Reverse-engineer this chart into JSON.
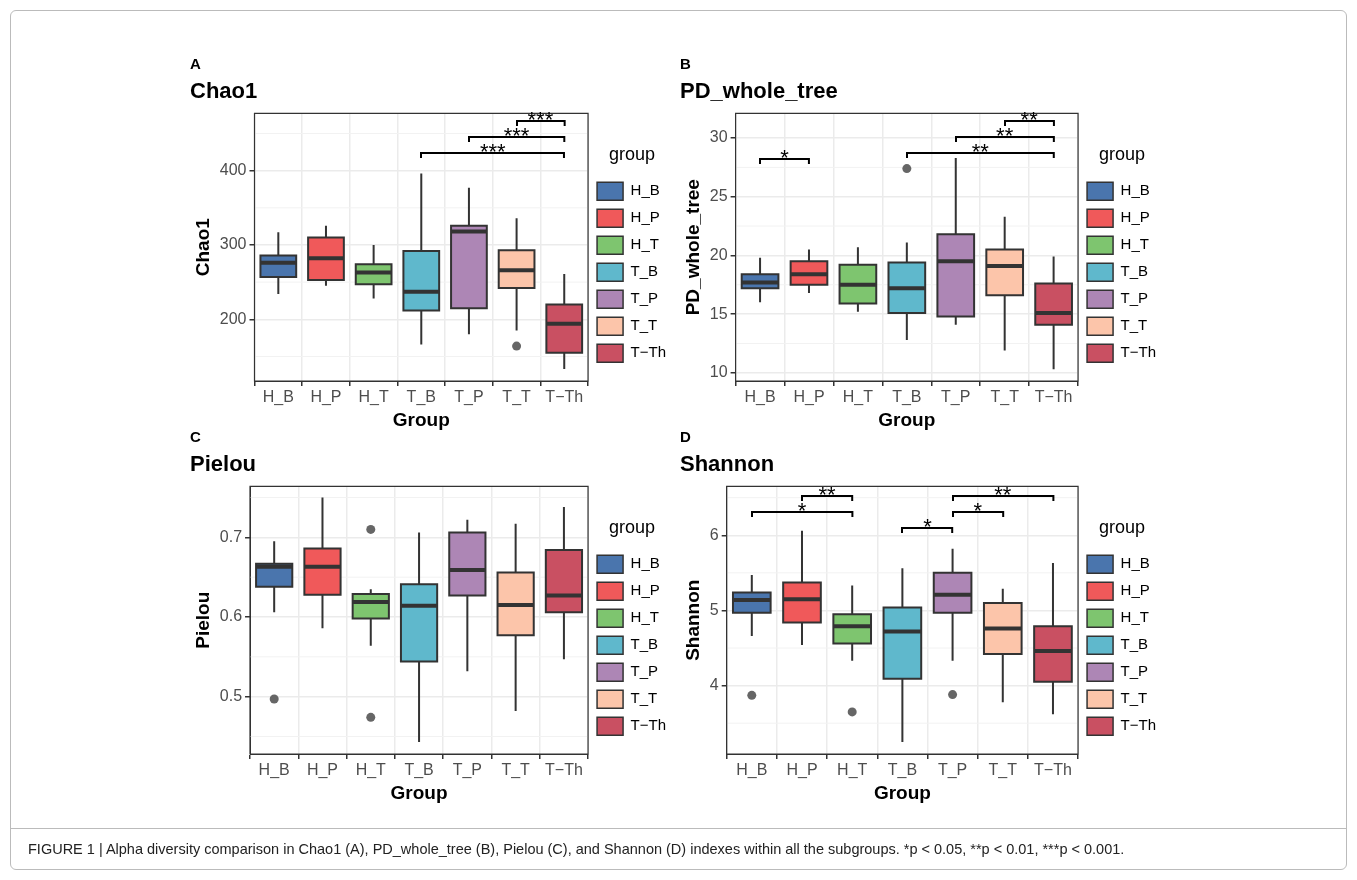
{
  "chart_data": [
    {
      "type": "box",
      "title": "Chao1",
      "xlabel": "Group",
      "ylabel": "Chao1",
      "legend_title": "group",
      "legend": "right",
      "grid": true,
      "categories": [
        "H_B",
        "H_P",
        "H_T",
        "T_B",
        "T_P",
        "T_T",
        "T−Th"
      ],
      "series": [
        {
          "name": "H_B",
          "color": "#4a75ad",
          "boxes": [
            {
              "low": 234,
              "q1": 257,
              "median": 276,
              "q3": 286,
              "high": 317
            },
            null,
            null,
            null,
            null,
            null,
            null
          ]
        },
        {
          "name": "H_P",
          "color": "#f0595a",
          "boxes": [
            null,
            {
              "low": 245,
              "q1": 253,
              "median": 282,
              "q3": 310,
              "high": 326
            },
            null,
            null,
            null,
            null,
            null
          ]
        },
        {
          "name": "H_T",
          "color": "#7ec56f",
          "boxes": [
            null,
            null,
            {
              "low": 228,
              "q1": 247,
              "median": 263,
              "q3": 274,
              "high": 300
            },
            null,
            null,
            null,
            null
          ]
        },
        {
          "name": "T_B",
          "color": "#5fb8cc",
          "boxes": [
            null,
            null,
            null,
            {
              "low": 166,
              "q1": 212,
              "median": 237,
              "q3": 292,
              "high": 396
            },
            null,
            null,
            null
          ]
        },
        {
          "name": "T_P",
          "color": "#ad86b5",
          "boxes": [
            null,
            null,
            null,
            null,
            {
              "low": 180,
              "q1": 215,
              "median": 318,
              "q3": 326,
              "high": 377
            },
            null,
            null
          ]
        },
        {
          "name": "T_T",
          "color": "#fcc5aa",
          "boxes": [
            null,
            null,
            null,
            null,
            null,
            {
              "low": 185,
              "q1": 242,
              "median": 266,
              "q3": 293,
              "high": 336,
              "outliers": [
                164
              ]
            },
            null
          ]
        },
        {
          "name": "T−Th",
          "color": "#c95062",
          "boxes": [
            null,
            null,
            null,
            null,
            null,
            null,
            {
              "low": 133,
              "q1": 155,
              "median": 194,
              "q3": 220,
              "high": 261
            }
          ]
        }
      ],
      "ylim": [
        117,
        477
      ],
      "yticks": [
        200,
        300,
        400
      ],
      "annotations": [
        "A",
        "***",
        "***",
        "***"
      ]
    },
    {
      "type": "box",
      "title": "PD_whole_tree",
      "xlabel": "Group",
      "ylabel": "PD_whole_tree",
      "legend_title": "group",
      "legend": "right",
      "grid": true,
      "categories": [
        "H_B",
        "H_P",
        "H_T",
        "T_B",
        "T_P",
        "T_T",
        "T−Th"
      ],
      "series": [
        {
          "name": "H_B",
          "color": "#4a75ad",
          "boxes": [
            {
              "low": 16.0,
              "q1": 17.2,
              "median": 17.7,
              "q3": 18.4,
              "high": 19.8
            },
            null,
            null,
            null,
            null,
            null,
            null
          ]
        },
        {
          "name": "H_P",
          "color": "#f0595a",
          "boxes": [
            null,
            {
              "low": 16.8,
              "q1": 17.5,
              "median": 18.4,
              "q3": 19.5,
              "high": 20.5
            },
            null,
            null,
            null,
            null,
            null
          ]
        },
        {
          "name": "H_T",
          "color": "#7ec56f",
          "boxes": [
            null,
            null,
            {
              "low": 15.2,
              "q1": 15.9,
              "median": 17.5,
              "q3": 19.2,
              "high": 20.7
            },
            null,
            null,
            null,
            null
          ]
        },
        {
          "name": "T_B",
          "color": "#5fb8cc",
          "boxes": [
            null,
            null,
            null,
            {
              "low": 12.8,
              "q1": 15.1,
              "median": 17.2,
              "q3": 19.4,
              "high": 21.1,
              "outliers": [
                27.4
              ]
            },
            null,
            null,
            null
          ]
        },
        {
          "name": "T_P",
          "color": "#ad86b5",
          "boxes": [
            null,
            null,
            null,
            null,
            {
              "low": 14.1,
              "q1": 14.8,
              "median": 19.5,
              "q3": 21.8,
              "high": 28.3
            },
            null,
            null
          ]
        },
        {
          "name": "T_T",
          "color": "#fcc5aa",
          "boxes": [
            null,
            null,
            null,
            null,
            null,
            {
              "low": 11.9,
              "q1": 16.6,
              "median": 19.1,
              "q3": 20.5,
              "high": 23.3
            },
            null
          ]
        },
        {
          "name": "T−Th",
          "color": "#c95062",
          "boxes": [
            null,
            null,
            null,
            null,
            null,
            null,
            {
              "low": 10.3,
              "q1": 14.1,
              "median": 15.1,
              "q3": 17.6,
              "high": 19.9
            }
          ]
        }
      ],
      "ylim": [
        9.3,
        32.1
      ],
      "yticks": [
        10,
        15,
        20,
        25,
        30
      ],
      "annotations": [
        "B",
        "*",
        "**",
        "**",
        "**"
      ]
    },
    {
      "type": "box",
      "title": "Pielou",
      "xlabel": "Group",
      "ylabel": "Pielou",
      "legend_title": "group",
      "legend": "right",
      "grid": true,
      "categories": [
        "H_B",
        "H_P",
        "H_T",
        "T_B",
        "T_P",
        "T_T",
        "T−Th"
      ],
      "series": [
        {
          "name": "H_B",
          "color": "#4a75ad",
          "boxes": [
            {
              "low": 0.606,
              "q1": 0.638,
              "median": 0.663,
              "q3": 0.667,
              "high": 0.695,
              "outliers": [
                0.497
              ]
            },
            null,
            null,
            null,
            null,
            null,
            null
          ]
        },
        {
          "name": "H_P",
          "color": "#f0595a",
          "boxes": [
            null,
            {
              "low": 0.586,
              "q1": 0.628,
              "median": 0.663,
              "q3": 0.686,
              "high": 0.75
            },
            null,
            null,
            null,
            null,
            null
          ]
        },
        {
          "name": "H_T",
          "color": "#7ec56f",
          "boxes": [
            null,
            null,
            {
              "low": 0.564,
              "q1": 0.598,
              "median": 0.619,
              "q3": 0.629,
              "high": 0.635,
              "outliers": [
                0.71,
                0.474
              ]
            },
            null,
            null,
            null,
            null
          ]
        },
        {
          "name": "T_B",
          "color": "#5fb8cc",
          "boxes": [
            null,
            null,
            null,
            {
              "low": 0.443,
              "q1": 0.544,
              "median": 0.614,
              "q3": 0.641,
              "high": 0.706
            },
            null,
            null,
            null
          ]
        },
        {
          "name": "T_P",
          "color": "#ad86b5",
          "boxes": [
            null,
            null,
            null,
            null,
            {
              "low": 0.532,
              "q1": 0.627,
              "median": 0.659,
              "q3": 0.706,
              "high": 0.722
            },
            null,
            null
          ]
        },
        {
          "name": "T_T",
          "color": "#fcc5aa",
          "boxes": [
            null,
            null,
            null,
            null,
            null,
            {
              "low": 0.482,
              "q1": 0.577,
              "median": 0.615,
              "q3": 0.656,
              "high": 0.717
            },
            null
          ]
        },
        {
          "name": "T−Th",
          "color": "#c95062",
          "boxes": [
            null,
            null,
            null,
            null,
            null,
            null,
            {
              "low": 0.547,
              "q1": 0.606,
              "median": 0.627,
              "q3": 0.684,
              "high": 0.738
            }
          ]
        }
      ],
      "ylim": [
        0.428,
        0.764
      ],
      "yticks": [
        0.5,
        0.6,
        0.7
      ],
      "annotations": [
        "C"
      ]
    },
    {
      "type": "box",
      "title": "Shannon",
      "xlabel": "Group",
      "ylabel": "Shannon",
      "legend_title": "group",
      "legend": "right",
      "grid": true,
      "categories": [
        "H_B",
        "H_P",
        "H_T",
        "T_B",
        "T_P",
        "T_T",
        "T−Th"
      ],
      "series": [
        {
          "name": "H_B",
          "color": "#4a75ad",
          "boxes": [
            {
              "low": 4.66,
              "q1": 4.97,
              "median": 5.14,
              "q3": 5.24,
              "high": 5.47,
              "outliers": [
                3.87
              ]
            },
            null,
            null,
            null,
            null,
            null,
            null
          ]
        },
        {
          "name": "H_P",
          "color": "#f0595a",
          "boxes": [
            null,
            {
              "low": 4.54,
              "q1": 4.84,
              "median": 5.15,
              "q3": 5.37,
              "high": 6.06
            },
            null,
            null,
            null,
            null,
            null
          ]
        },
        {
          "name": "H_T",
          "color": "#7ec56f",
          "boxes": [
            null,
            null,
            {
              "low": 4.33,
              "q1": 4.56,
              "median": 4.79,
              "q3": 4.95,
              "high": 5.33,
              "outliers": [
                3.65
              ]
            },
            null,
            null,
            null,
            null
          ]
        },
        {
          "name": "T_B",
          "color": "#5fb8cc",
          "boxes": [
            null,
            null,
            null,
            {
              "low": 3.25,
              "q1": 4.09,
              "median": 4.72,
              "q3": 5.04,
              "high": 5.56
            },
            null,
            null,
            null
          ]
        },
        {
          "name": "T_P",
          "color": "#ad86b5",
          "boxes": [
            null,
            null,
            null,
            null,
            {
              "low": 4.33,
              "q1": 4.97,
              "median": 5.21,
              "q3": 5.5,
              "high": 5.82,
              "outliers": [
                3.88
              ]
            },
            null,
            null
          ]
        },
        {
          "name": "T_T",
          "color": "#fcc5aa",
          "boxes": [
            null,
            null,
            null,
            null,
            null,
            {
              "low": 3.78,
              "q1": 4.42,
              "median": 4.76,
              "q3": 5.1,
              "high": 5.29
            },
            null
          ]
        },
        {
          "name": "T−Th",
          "color": "#c95062",
          "boxes": [
            null,
            null,
            null,
            null,
            null,
            null,
            {
              "low": 3.62,
              "q1": 4.05,
              "median": 4.46,
              "q3": 4.79,
              "high": 5.63
            }
          ]
        }
      ],
      "ylim": [
        3.09,
        6.65
      ],
      "yticks": [
        4,
        5,
        6
      ],
      "annotations": [
        "D",
        "**",
        "*",
        "*",
        "**",
        "*",
        "FIGURE 1 | Alpha diversity comparison in Chao1 (A), PD_whole_tree (B), Pielou (C), and Shannon (D) indexes within all the subgroups. *p < 0.05, **p < 0.01, ***p < 0.001."
      ]
    }
  ]
}
